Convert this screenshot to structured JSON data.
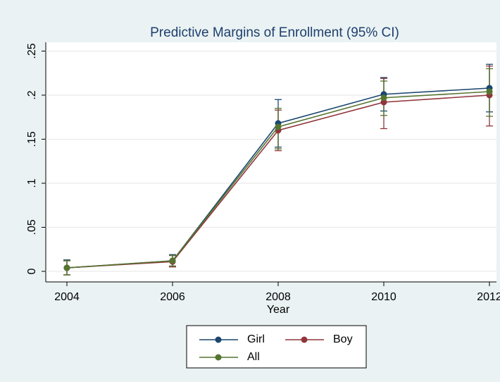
{
  "chart_data": {
    "type": "line",
    "title": "Predictive Margins of Enrollment (95% CI)",
    "x_label": "Year",
    "x": [
      2004,
      2006,
      2008,
      2010,
      2012
    ],
    "series": [
      {
        "name": "Girl",
        "color": "#1a476f",
        "values": [
          0.004,
          0.012,
          0.168,
          0.201,
          0.208
        ],
        "ci_low": [
          -0.004,
          0.006,
          0.141,
          0.182,
          0.181
        ],
        "ci_high": [
          0.013,
          0.019,
          0.195,
          0.22,
          0.235
        ]
      },
      {
        "name": "Boy",
        "color": "#90353b",
        "values": [
          0.004,
          0.011,
          0.16,
          0.192,
          0.2
        ],
        "ci_low": [
          -0.004,
          0.005,
          0.137,
          0.162,
          0.165
        ],
        "ci_high": [
          0.012,
          0.018,
          0.183,
          0.219,
          0.233
        ]
      },
      {
        "name": "All",
        "color": "#55752f",
        "values": [
          0.004,
          0.012,
          0.164,
          0.197,
          0.204
        ],
        "ci_low": [
          -0.004,
          0.006,
          0.139,
          0.177,
          0.176
        ],
        "ci_high": [
          0.012,
          0.018,
          0.185,
          0.216,
          0.23
        ]
      }
    ],
    "xlim": [
      2004,
      2012
    ],
    "xticks": [
      2004,
      2006,
      2008,
      2010,
      2012
    ],
    "ylim": [
      -0.012,
      0.26
    ],
    "yticks": [
      0,
      {
        "value": 0.05,
        "label": ".05"
      },
      {
        "value": 0.1,
        "label": ".1"
      },
      {
        "value": 0.15,
        "label": ".15"
      },
      {
        "value": 0.2,
        "label": ".2"
      },
      {
        "value": 0.25,
        "label": ".25"
      }
    ],
    "grid": true
  }
}
